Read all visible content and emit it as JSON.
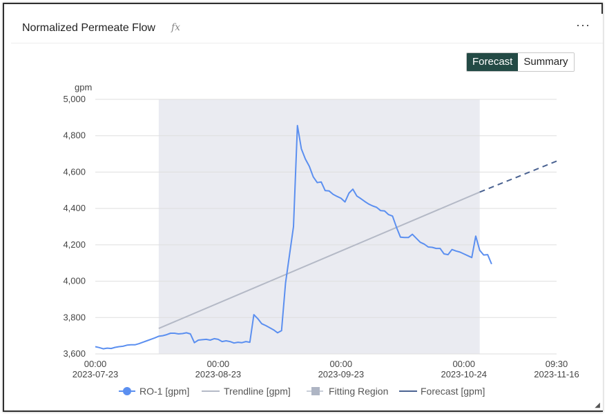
{
  "panel": {
    "title": "Normalized Permeate Flow",
    "fx_label": "fx",
    "menu_label": "···"
  },
  "toggle": {
    "forecast_label": "Forecast",
    "summary_label": "Summary",
    "selected": "Forecast"
  },
  "colors": {
    "series": "#5b8ff0",
    "trendline": "#b4b9c6",
    "fitting_region": "#eaebf1",
    "forecast": "#4a6291",
    "toggle_active": "#234a45"
  },
  "chart_data": {
    "type": "line",
    "ylabel": "gpm",
    "ylim": [
      3600,
      5000
    ],
    "yticks": [
      "3,600",
      "3,800",
      "4,000",
      "4,200",
      "4,400",
      "4,600",
      "4,800",
      "5,000"
    ],
    "yvalues": [
      3600,
      3800,
      4000,
      4200,
      4400,
      4600,
      4800,
      5000
    ],
    "xlim": [
      "2023-07-23",
      "2023-11-16"
    ],
    "xticks": [
      {
        "date": "2023-07-23",
        "time": "00:00",
        "label": "2023-07-23"
      },
      {
        "date": "2023-08-23",
        "time": "00:00",
        "label": "2023-08-23"
      },
      {
        "date": "2023-09-23",
        "time": "00:00",
        "label": "2023-09-23"
      },
      {
        "date": "2023-10-24",
        "time": "00:00",
        "label": "2023-10-24"
      },
      {
        "date": "2023-11-16",
        "time": "09:30",
        "label": "2023-11-16"
      }
    ],
    "fitting_region": {
      "start": "2023-08-08",
      "end": "2023-10-28"
    },
    "trendline": {
      "start": {
        "x": "2023-08-08",
        "y": 3740
      },
      "end": {
        "x": "2023-10-28",
        "y": 4490
      }
    },
    "forecast": {
      "start": {
        "x": "2023-10-28",
        "y": 4490
      },
      "end": {
        "x": "2023-11-16",
        "y": 4660
      }
    },
    "legend": [
      {
        "label": "RO-1 [gpm]",
        "marker": "circle"
      },
      {
        "label": "Trendline [gpm]",
        "marker": "line"
      },
      {
        "label": "Fitting Region",
        "marker": "square"
      },
      {
        "label": "Forecast [gpm]",
        "marker": "line"
      }
    ],
    "series": [
      {
        "name": "RO-1 [gpm]",
        "points": [
          [
            "2023-07-23",
            3640
          ],
          [
            "2023-07-24",
            3635
          ],
          [
            "2023-07-25",
            3628
          ],
          [
            "2023-07-26",
            3632
          ],
          [
            "2023-07-27",
            3630
          ],
          [
            "2023-07-28",
            3636
          ],
          [
            "2023-07-29",
            3640
          ],
          [
            "2023-07-30",
            3642
          ],
          [
            "2023-07-31",
            3648
          ],
          [
            "2023-08-01",
            3650
          ],
          [
            "2023-08-02",
            3650
          ],
          [
            "2023-08-03",
            3656
          ],
          [
            "2023-08-04",
            3664
          ],
          [
            "2023-08-05",
            3672
          ],
          [
            "2023-08-06",
            3680
          ],
          [
            "2023-08-07",
            3688
          ],
          [
            "2023-08-08",
            3697
          ],
          [
            "2023-08-09",
            3700
          ],
          [
            "2023-08-10",
            3706
          ],
          [
            "2023-08-11",
            3714
          ],
          [
            "2023-08-12",
            3714
          ],
          [
            "2023-08-13",
            3710
          ],
          [
            "2023-08-14",
            3712
          ],
          [
            "2023-08-15",
            3716
          ],
          [
            "2023-08-16",
            3710
          ],
          [
            "2023-08-17",
            3662
          ],
          [
            "2023-08-18",
            3676
          ],
          [
            "2023-08-19",
            3678
          ],
          [
            "2023-08-20",
            3680
          ],
          [
            "2023-08-21",
            3676
          ],
          [
            "2023-08-22",
            3684
          ],
          [
            "2023-08-23",
            3680
          ],
          [
            "2023-08-24",
            3668
          ],
          [
            "2023-08-25",
            3672
          ],
          [
            "2023-08-26",
            3668
          ],
          [
            "2023-08-27",
            3660
          ],
          [
            "2023-08-28",
            3664
          ],
          [
            "2023-08-29",
            3662
          ],
          [
            "2023-08-30",
            3668
          ],
          [
            "2023-08-31",
            3664
          ],
          [
            "2023-09-01",
            3816
          ],
          [
            "2023-09-02",
            3794
          ],
          [
            "2023-09-03",
            3766
          ],
          [
            "2023-09-04",
            3756
          ],
          [
            "2023-09-05",
            3744
          ],
          [
            "2023-09-06",
            3732
          ],
          [
            "2023-09-07",
            3716
          ],
          [
            "2023-09-08",
            3728
          ],
          [
            "2023-09-09",
            3990
          ],
          [
            "2023-09-11",
            4300
          ],
          [
            "2023-09-12",
            4856
          ],
          [
            "2023-09-13",
            4728
          ],
          [
            "2023-09-14",
            4672
          ],
          [
            "2023-09-15",
            4632
          ],
          [
            "2023-09-16",
            4574
          ],
          [
            "2023-09-17",
            4542
          ],
          [
            "2023-09-18",
            4546
          ],
          [
            "2023-09-19",
            4498
          ],
          [
            "2023-09-20",
            4496
          ],
          [
            "2023-09-21",
            4478
          ],
          [
            "2023-09-22",
            4466
          ],
          [
            "2023-09-23",
            4456
          ],
          [
            "2023-09-24",
            4436
          ],
          [
            "2023-09-25",
            4484
          ],
          [
            "2023-09-26",
            4506
          ],
          [
            "2023-09-27",
            4468
          ],
          [
            "2023-09-28",
            4454
          ],
          [
            "2023-09-29",
            4438
          ],
          [
            "2023-09-30",
            4424
          ],
          [
            "2023-10-01",
            4414
          ],
          [
            "2023-10-02",
            4406
          ],
          [
            "2023-10-03",
            4388
          ],
          [
            "2023-10-04",
            4386
          ],
          [
            "2023-10-05",
            4366
          ],
          [
            "2023-10-06",
            4358
          ],
          [
            "2023-10-07",
            4296
          ],
          [
            "2023-10-08",
            4242
          ],
          [
            "2023-10-09",
            4240
          ],
          [
            "2023-10-10",
            4240
          ],
          [
            "2023-10-11",
            4258
          ],
          [
            "2023-10-12",
            4236
          ],
          [
            "2023-10-13",
            4214
          ],
          [
            "2023-10-14",
            4204
          ],
          [
            "2023-10-15",
            4188
          ],
          [
            "2023-10-16",
            4186
          ],
          [
            "2023-10-17",
            4180
          ],
          [
            "2023-10-18",
            4180
          ],
          [
            "2023-10-19",
            4150
          ],
          [
            "2023-10-20",
            4146
          ],
          [
            "2023-10-21",
            4174
          ],
          [
            "2023-10-22",
            4166
          ],
          [
            "2023-10-23",
            4160
          ],
          [
            "2023-10-24",
            4150
          ],
          [
            "2023-10-25",
            4140
          ],
          [
            "2023-10-26",
            4130
          ],
          [
            "2023-10-27",
            4248
          ],
          [
            "2023-10-28",
            4170
          ],
          [
            "2023-10-29",
            4144
          ],
          [
            "2023-10-30",
            4146
          ],
          [
            "2023-10-31",
            4094
          ]
        ]
      }
    ]
  }
}
